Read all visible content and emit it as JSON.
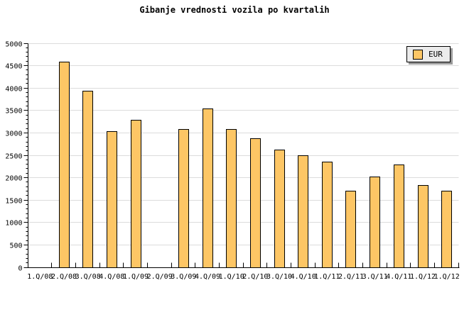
{
  "chart_data": {
    "type": "bar",
    "title": "Gibanje vrednosti vozila po kvartalih",
    "categories": [
      "1.Q/08",
      "2.Q/08",
      "3.Q/08",
      "4.Q/08",
      "1.Q/09",
      "2.Q/09",
      "3.Q/09",
      "4.Q/09",
      "1.Q/10",
      "2.Q/10",
      "3.Q/10",
      "4.Q/10",
      "1.Q/11",
      "2.Q/11",
      "3.Q/11",
      "4.Q/11",
      "1.Q/12",
      "1.Q/12"
    ],
    "series": [
      {
        "name": "EUR",
        "values": [
          null,
          4600,
          3950,
          3050,
          3300,
          null,
          3100,
          3550,
          3100,
          2890,
          2630,
          2510,
          2370,
          1720,
          2030,
          2300,
          1850,
          1720
        ]
      }
    ],
    "xlabel": "",
    "ylabel": "",
    "ylim": [
      0,
      5000
    ],
    "ytick_major": 500,
    "ytick_minor": 100,
    "ytick_labels": [
      "0",
      "500",
      "1000",
      "1500",
      "2000",
      "2500",
      "3000",
      "3500",
      "4000",
      "4500",
      "5000"
    ],
    "grid": "horizontal-major",
    "legend": {
      "label": "EUR",
      "position": "top-right"
    },
    "colors": {
      "bar_fill": "#FDC665",
      "bar_border": "#000000",
      "grid": "#DCDCDC",
      "axis": "#000000",
      "background": "#FFFFFF",
      "legend_bg": "#EBEBEB",
      "legend_shadow": "#999999",
      "text": "#000000"
    }
  }
}
